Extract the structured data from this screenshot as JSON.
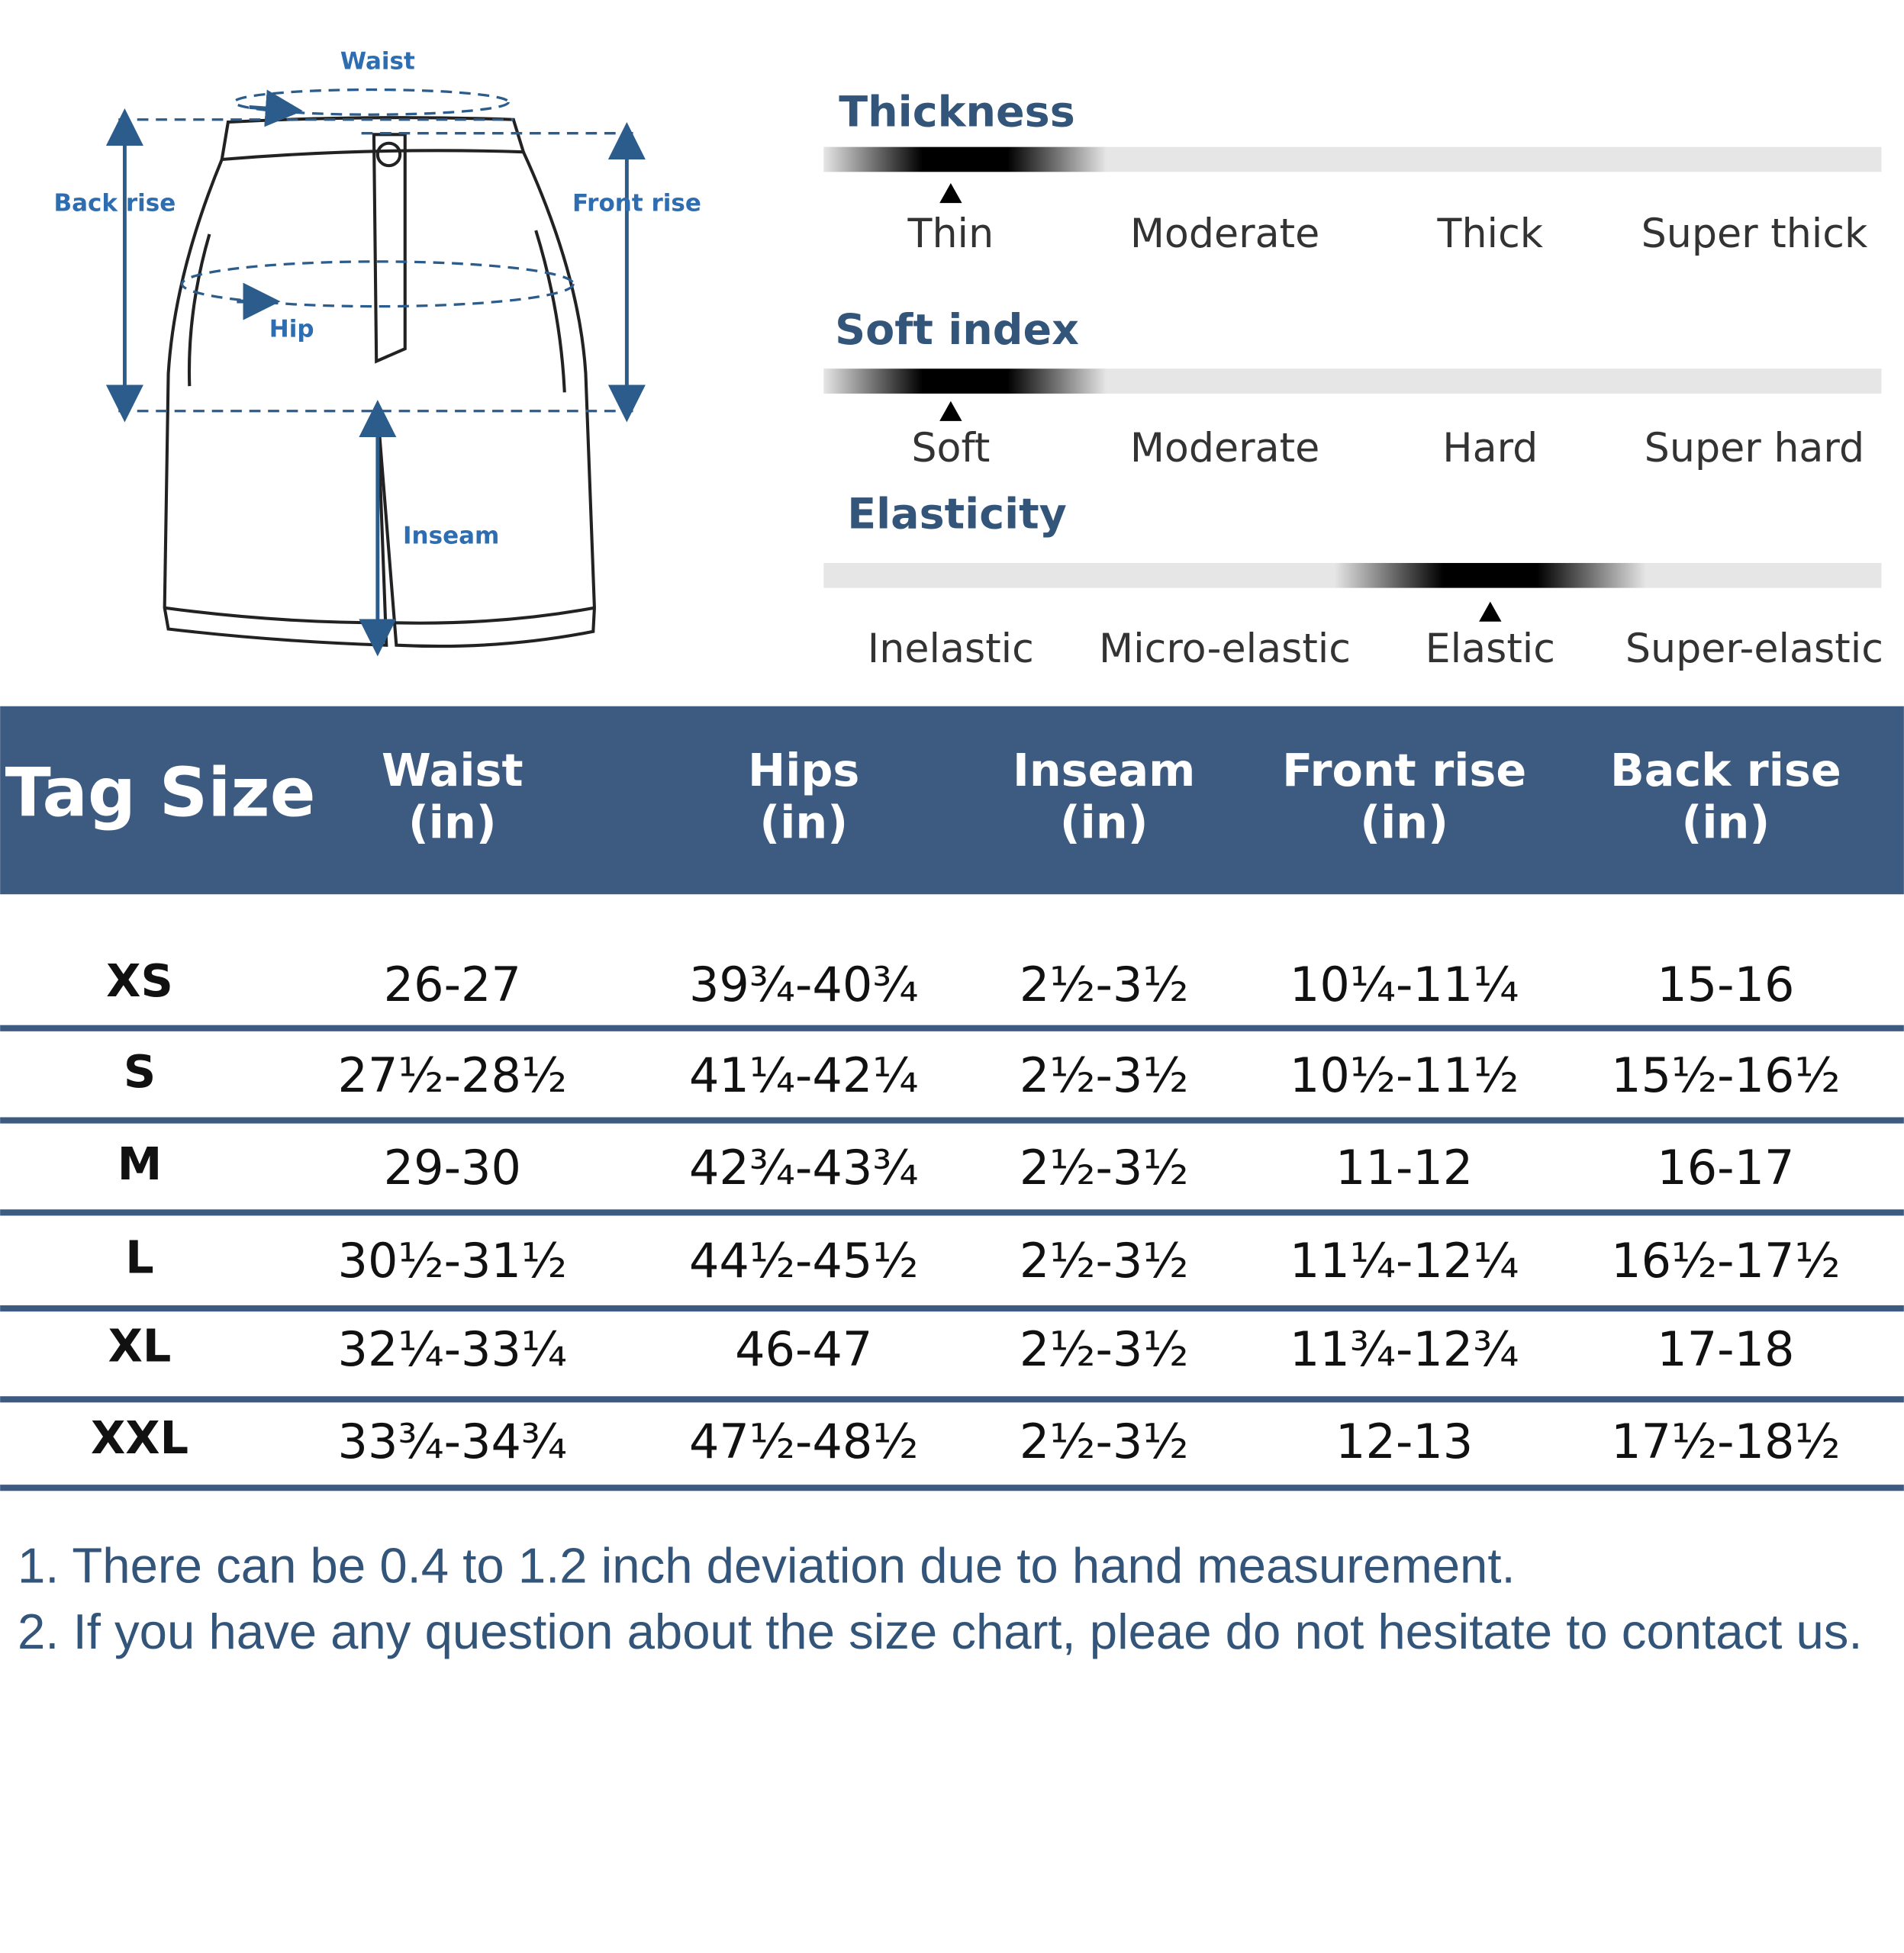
{
  "diagram": {
    "waist": "Waist",
    "back_rise": "Back rise",
    "front_rise": "Front rise",
    "hip": "Hip",
    "inseam": "Inseam"
  },
  "scales": [
    {
      "title": "Thickness",
      "options": [
        "Thin",
        "Moderate",
        "Thick",
        "Super thick"
      ],
      "selected": 0
    },
    {
      "title": "Soft index",
      "options": [
        "Soft",
        "Moderate",
        "Hard",
        "Super hard"
      ],
      "selected": 0
    },
    {
      "title": "Elasticity",
      "options": [
        "Inelastic",
        "Micro-elastic",
        "Elastic",
        "Super-elastic"
      ],
      "selected": 2
    }
  ],
  "table": {
    "header": [
      [
        "Tag Size"
      ],
      [
        "Waist",
        "(in)"
      ],
      [
        "Hips",
        "(in)"
      ],
      [
        "Inseam",
        "(in)"
      ],
      [
        "Front rise",
        "(in)"
      ],
      [
        "Back rise",
        "(in)"
      ]
    ],
    "rows": [
      [
        "XS",
        "26-27",
        "39¾-40¾",
        "2½-3½",
        "10¼-11¼",
        "15-16"
      ],
      [
        "S",
        "27½-28½",
        "41¼-42¼",
        "2½-3½",
        "10½-11½",
        "15½-16½"
      ],
      [
        "M",
        "29-30",
        "42¾-43¾",
        "2½-3½",
        "11-12",
        "16-17"
      ],
      [
        "L",
        "30½-31½",
        "44½-45½",
        "2½-3½",
        "11¼-12¼",
        "16½-17½"
      ],
      [
        "XL",
        "32¼-33¼",
        "46-47",
        "2½-3½",
        "11¾-12¾",
        "17-18"
      ],
      [
        "XXL",
        "33¾-34¾",
        "47½-48½",
        "2½-3½",
        "12-13",
        "17½-18½"
      ]
    ]
  },
  "notes": [
    "1. There can be 0.4 to 1.2 inch deviation due to hand measurement.",
    "2. If you have any question about the size chart, pleae do not hesitate to contact us."
  ]
}
